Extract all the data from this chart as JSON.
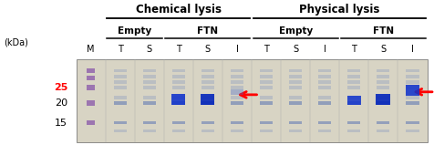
{
  "title_chemical": "Chemical lysis",
  "title_physical": "Physical lysis",
  "subtitle_empty1": "Empty",
  "subtitle_ftn1": "FTN",
  "subtitle_empty2": "Empty",
  "subtitle_ftn2": "FTN",
  "col_labels": [
    "M",
    "T",
    "S",
    "T",
    "S",
    "I",
    "T",
    "S",
    "I",
    "T",
    "S",
    "I"
  ],
  "kda_label": "(kDa)",
  "kda_values": [
    "25",
    "20",
    "15"
  ],
  "kda_25_color": "#ff0000",
  "kda_20_color": "#000000",
  "kda_15_color": "#000000",
  "bg_color": "#ffffff",
  "gel_bg": "#d8d4c4",
  "title_fontsize": 8.5,
  "label_fontsize": 7.5,
  "col_fontsize": 7.0
}
